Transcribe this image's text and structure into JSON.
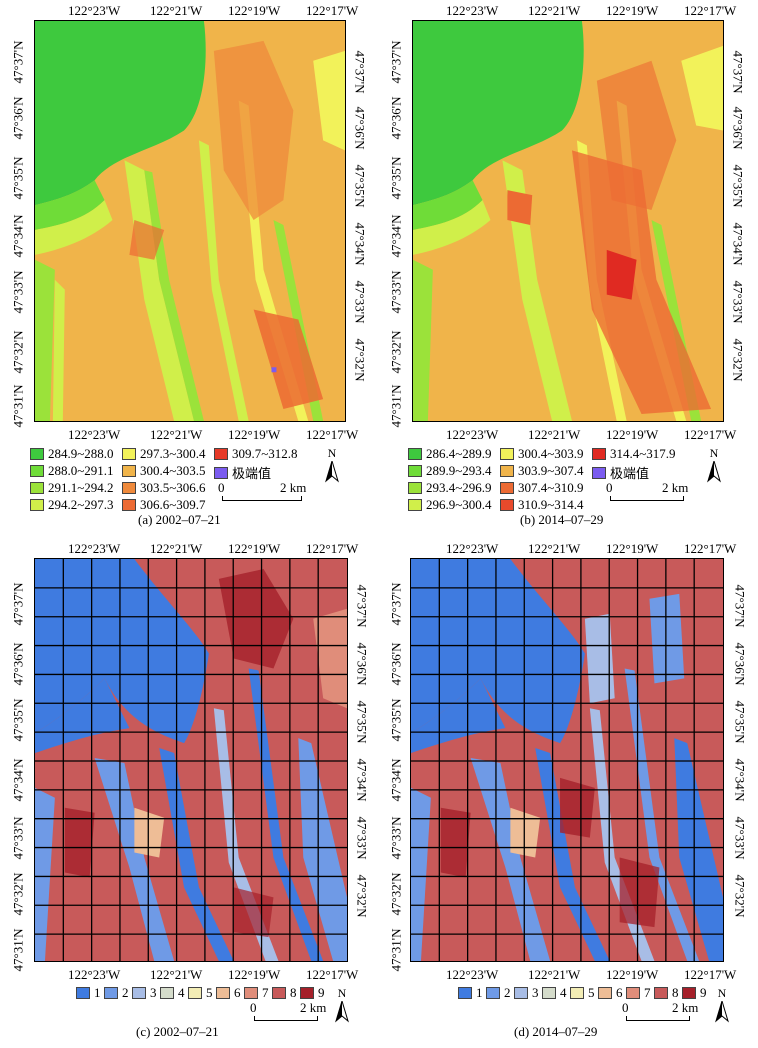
{
  "maps": [
    {
      "id": "a",
      "caption": "(a) 2002–07–21",
      "top_ticks": [
        "122°23'W",
        "122°21'W",
        "122°19'W",
        "122°17'W"
      ],
      "bottom_ticks": [
        "122°23'W",
        "122°21'W",
        "122°19'W",
        "122°17'W"
      ],
      "left_ticks": [
        "47°37'N",
        "47°36'N",
        "47°35'N",
        "47°34'N",
        "47°33'N",
        "47°32'N",
        "47°31'N"
      ],
      "right_ticks": [
        "47°37'N",
        "47°36'N",
        "47°35'N",
        "47°34'N",
        "47°33'N",
        "47°32'N"
      ],
      "legend": [
        {
          "label": "284.9~288.0",
          "color": "#3ec93e"
        },
        {
          "label": "288.0~291.1",
          "color": "#6fdc38"
        },
        {
          "label": "291.1~294.2",
          "color": "#9be23a"
        },
        {
          "label": "294.2~297.3",
          "color": "#d0ef4a"
        },
        {
          "label": "297.3~300.4",
          "color": "#f2f25a"
        },
        {
          "label": "300.4~303.5",
          "color": "#f0b44a"
        },
        {
          "label": "303.5~306.6",
          "color": "#ef8a3c"
        },
        {
          "label": "306.6~309.7",
          "color": "#ec6a33"
        },
        {
          "label": "309.7~312.8",
          "color": "#e63a28"
        },
        {
          "label": "极端值",
          "color": "#7b5cf0"
        }
      ],
      "scale_zero": "0",
      "scale_label": "2 km",
      "north": "N"
    },
    {
      "id": "b",
      "caption": "(b) 2014–07–29",
      "top_ticks": [
        "122°23'W",
        "122°21'W",
        "122°19'W",
        "122°17'W"
      ],
      "bottom_ticks": [
        "122°23'W",
        "122°21'W",
        "122°19'W",
        "122°17'W"
      ],
      "left_ticks": [
        "47°37'N",
        "47°36'N",
        "47°35'N",
        "47°34'N",
        "47°33'N",
        "47°32'N",
        "47°31'N"
      ],
      "right_ticks": [
        "47°37'N",
        "47°36'N",
        "47°35'N",
        "47°34'N",
        "47°33'N",
        "47°32'N"
      ],
      "legend": [
        {
          "label": "286.4~289.9",
          "color": "#3ec93e"
        },
        {
          "label": "289.9~293.4",
          "color": "#6fdc38"
        },
        {
          "label": "293.4~296.9",
          "color": "#9be23a"
        },
        {
          "label": "296.9~300.4",
          "color": "#d0ef4a"
        },
        {
          "label": "300.4~303.9",
          "color": "#f2f25a"
        },
        {
          "label": "303.9~307.4",
          "color": "#f0b44a"
        },
        {
          "label": "307.4~310.9",
          "color": "#ec6a33"
        },
        {
          "label": "310.9~314.4",
          "color": "#e84a2c"
        },
        {
          "label": "314.4~317.9",
          "color": "#e02a22"
        },
        {
          "label": "极端值",
          "color": "#7b5cf0"
        }
      ],
      "scale_zero": "0",
      "scale_label": "2 km",
      "north": "N"
    },
    {
      "id": "c",
      "caption": "(c) 2002–07–21",
      "top_ticks": [
        "122°23'W",
        "122°21'W",
        "122°19'W",
        "122°17'W"
      ],
      "bottom_ticks": [
        "122°23'W",
        "122°21'W",
        "122°19'W",
        "122°17'W"
      ],
      "left_ticks": [
        "47°37'N",
        "47°36'N",
        "47°35'N",
        "47°34'N",
        "47°33'N",
        "47°32'N",
        "47°31'N"
      ],
      "right_ticks": [
        "47°37'N",
        "47°36'N",
        "47°35'N",
        "47°34'N",
        "47°33'N",
        "47°32'N"
      ],
      "legend": [
        {
          "label": "1",
          "color": "#3f7be0"
        },
        {
          "label": "2",
          "color": "#6f9ae6"
        },
        {
          "label": "3",
          "color": "#a8bde6"
        },
        {
          "label": "4",
          "color": "#d5dccb"
        },
        {
          "label": "5",
          "color": "#f3edb5"
        },
        {
          "label": "6",
          "color": "#eebd96"
        },
        {
          "label": "7",
          "color": "#e08d7a"
        },
        {
          "label": "8",
          "color": "#c85a5a"
        },
        {
          "label": "9",
          "color": "#a5202a"
        }
      ],
      "scale_zero": "0",
      "scale_label": "2 km",
      "north": "N"
    },
    {
      "id": "d",
      "caption": "(d) 2014–07–29",
      "top_ticks": [
        "122°23'W",
        "122°21'W",
        "122°19'W",
        "122°17'W"
      ],
      "bottom_ticks": [
        "122°23'W",
        "122°21'W",
        "122°19'W",
        "122°17'W"
      ],
      "left_ticks": [
        "47°37'N",
        "47°36'N",
        "47°35'N",
        "47°34'N",
        "47°33'N",
        "47°32'N",
        "47°31'N"
      ],
      "right_ticks": [
        "47°37'N",
        "47°36'N",
        "47°35'N",
        "47°34'N",
        "47°33'N",
        "47°32'N"
      ],
      "legend": [
        {
          "label": "1",
          "color": "#3f7be0"
        },
        {
          "label": "2",
          "color": "#6f9ae6"
        },
        {
          "label": "3",
          "color": "#a8bde6"
        },
        {
          "label": "4",
          "color": "#d5dccb"
        },
        {
          "label": "5",
          "color": "#f3edb5"
        },
        {
          "label": "6",
          "color": "#eebd96"
        },
        {
          "label": "7",
          "color": "#e08d7a"
        },
        {
          "label": "8",
          "color": "#c85a5a"
        },
        {
          "label": "9",
          "color": "#a5202a"
        }
      ],
      "scale_zero": "0",
      "scale_label": "2 km",
      "north": "N"
    }
  ]
}
